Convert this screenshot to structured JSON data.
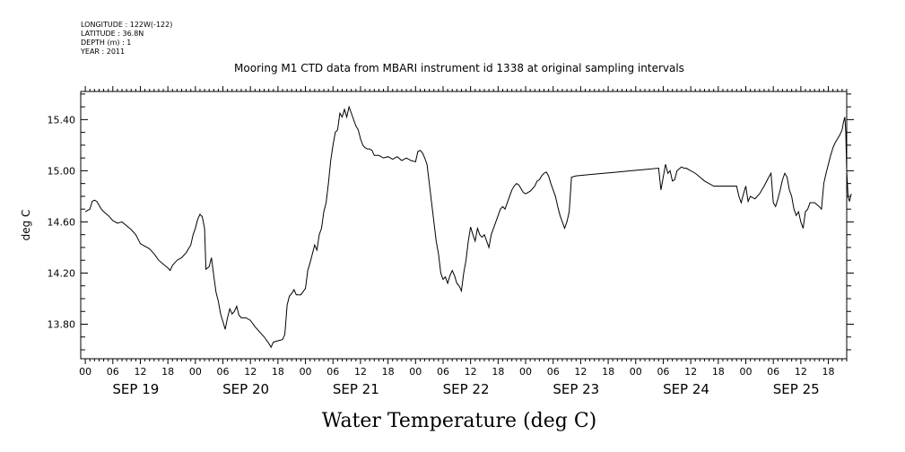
{
  "header": {
    "meta_lines": [
      "LONGITUDE : 122W(-122)",
      "LATITUDE : 36.8N",
      "DEPTH (m) : 1",
      "YEAR : 2011"
    ]
  },
  "chart_data": {
    "type": "line",
    "title": "Mooring M1 CTD data from MBARI instrument id 1338 at original sampling intervals",
    "xlabel": "Water Temperature (deg C)",
    "ylabel": "deg C",
    "x_unit": "hours since 00 SEP 19",
    "xlim": [
      -1,
      166
    ],
    "ylim": [
      13.53,
      15.62
    ],
    "y_ticks": [
      13.8,
      14.2,
      14.6,
      15.0,
      15.4
    ],
    "y_tick_labels": [
      "13.80",
      "14.20",
      "14.60",
      "15.00",
      "15.40"
    ],
    "x_hour_labels": [
      "00",
      "06",
      "12",
      "18",
      "00",
      "06",
      "12",
      "18",
      "00",
      "06",
      "12",
      "18",
      "00",
      "06",
      "12",
      "18",
      "00",
      "06",
      "12",
      "18",
      "00",
      "06",
      "12",
      "18",
      "00",
      "06",
      "12",
      "18"
    ],
    "day_labels": [
      "SEP 19",
      "SEP 20",
      "SEP 21",
      "SEP 22",
      "SEP 23",
      "SEP 24",
      "SEP 25"
    ],
    "grid": false,
    "series": [
      {
        "points": [
          [
            0,
            14.68
          ],
          [
            0.5,
            14.69
          ],
          [
            1,
            14.7
          ],
          [
            1.5,
            14.76
          ],
          [
            2,
            14.77
          ],
          [
            2.5,
            14.76
          ],
          [
            3,
            14.73
          ],
          [
            3.5,
            14.7
          ],
          [
            4,
            14.68
          ],
          [
            5,
            14.65
          ],
          [
            6,
            14.61
          ],
          [
            7,
            14.59
          ],
          [
            8,
            14.6
          ],
          [
            9,
            14.57
          ],
          [
            10,
            14.54
          ],
          [
            11,
            14.5
          ],
          [
            12,
            14.43
          ],
          [
            13,
            14.41
          ],
          [
            14,
            14.39
          ],
          [
            15,
            14.35
          ],
          [
            16,
            14.3
          ],
          [
            17,
            14.27
          ],
          [
            18,
            14.24
          ],
          [
            18.5,
            14.22
          ],
          [
            19,
            14.26
          ],
          [
            20,
            14.3
          ],
          [
            21,
            14.32
          ],
          [
            22,
            14.36
          ],
          [
            23,
            14.42
          ],
          [
            23.5,
            14.5
          ],
          [
            24,
            14.55
          ],
          [
            24.5,
            14.62
          ],
          [
            25,
            14.66
          ],
          [
            25.5,
            14.64
          ],
          [
            26,
            14.55
          ],
          [
            26.3,
            14.23
          ],
          [
            27,
            14.25
          ],
          [
            27.5,
            14.32
          ],
          [
            28,
            14.18
          ],
          [
            28.5,
            14.05
          ],
          [
            29,
            13.98
          ],
          [
            29.5,
            13.88
          ],
          [
            30,
            13.82
          ],
          [
            30.5,
            13.76
          ],
          [
            31,
            13.85
          ],
          [
            31.5,
            13.92
          ],
          [
            32,
            13.88
          ],
          [
            32.5,
            13.9
          ],
          [
            33,
            13.94
          ],
          [
            33.5,
            13.87
          ],
          [
            34,
            13.85
          ],
          [
            35,
            13.85
          ],
          [
            36,
            13.83
          ],
          [
            37,
            13.78
          ],
          [
            38,
            13.74
          ],
          [
            39,
            13.7
          ],
          [
            40,
            13.65
          ],
          [
            40.5,
            13.62
          ],
          [
            41,
            13.66
          ],
          [
            42,
            13.67
          ],
          [
            43,
            13.68
          ],
          [
            43.5,
            13.72
          ],
          [
            44,
            13.95
          ],
          [
            44.5,
            14.02
          ],
          [
            45,
            14.04
          ],
          [
            45.5,
            14.07
          ],
          [
            46,
            14.03
          ],
          [
            47,
            14.03
          ],
          [
            48,
            14.08
          ],
          [
            48.5,
            14.22
          ],
          [
            49,
            14.28
          ],
          [
            49.5,
            14.35
          ],
          [
            50,
            14.42
          ],
          [
            50.5,
            14.38
          ],
          [
            51,
            14.5
          ],
          [
            51.5,
            14.55
          ],
          [
            52,
            14.68
          ],
          [
            52.5,
            14.75
          ],
          [
            53,
            14.9
          ],
          [
            53.5,
            15.08
          ],
          [
            54,
            15.2
          ],
          [
            54.5,
            15.3
          ],
          [
            55,
            15.32
          ],
          [
            55.5,
            15.45
          ],
          [
            56,
            15.42
          ],
          [
            56.5,
            15.48
          ],
          [
            57,
            15.42
          ],
          [
            57.5,
            15.5
          ],
          [
            58,
            15.45
          ],
          [
            58.5,
            15.4
          ],
          [
            59,
            15.35
          ],
          [
            59.5,
            15.32
          ],
          [
            60,
            15.25
          ],
          [
            60.5,
            15.2
          ],
          [
            61,
            15.18
          ],
          [
            61.5,
            15.17
          ],
          [
            62,
            15.17
          ],
          [
            62.5,
            15.16
          ],
          [
            63,
            15.12
          ],
          [
            64,
            15.12
          ],
          [
            65,
            15.1
          ],
          [
            66,
            15.11
          ],
          [
            67,
            15.09
          ],
          [
            68,
            15.11
          ],
          [
            69,
            15.08
          ],
          [
            70,
            15.1
          ],
          [
            71,
            15.08
          ],
          [
            72,
            15.07
          ],
          [
            72.5,
            15.15
          ],
          [
            73,
            15.16
          ],
          [
            73.5,
            15.14
          ],
          [
            74,
            15.1
          ],
          [
            74.5,
            15.05
          ],
          [
            75,
            14.9
          ],
          [
            75.5,
            14.75
          ],
          [
            76,
            14.6
          ],
          [
            76.5,
            14.45
          ],
          [
            77,
            14.35
          ],
          [
            77.5,
            14.2
          ],
          [
            78,
            14.15
          ],
          [
            78.5,
            14.17
          ],
          [
            79,
            14.12
          ],
          [
            79.5,
            14.18
          ],
          [
            80,
            14.22
          ],
          [
            80.5,
            14.18
          ],
          [
            81,
            14.12
          ],
          [
            81.5,
            14.1
          ],
          [
            82,
            14.06
          ],
          [
            82.5,
            14.2
          ],
          [
            83,
            14.3
          ],
          [
            83.5,
            14.45
          ],
          [
            84,
            14.56
          ],
          [
            84.5,
            14.5
          ],
          [
            85,
            14.45
          ],
          [
            85.5,
            14.55
          ],
          [
            86,
            14.5
          ],
          [
            86.5,
            14.48
          ],
          [
            87,
            14.5
          ],
          [
            87.5,
            14.45
          ],
          [
            88,
            14.4
          ],
          [
            88.5,
            14.5
          ],
          [
            89,
            14.55
          ],
          [
            89.5,
            14.6
          ],
          [
            90,
            14.65
          ],
          [
            90.5,
            14.7
          ],
          [
            91,
            14.72
          ],
          [
            91.5,
            14.7
          ],
          [
            92,
            14.75
          ],
          [
            92.5,
            14.8
          ],
          [
            93,
            14.85
          ],
          [
            93.5,
            14.88
          ],
          [
            94,
            14.9
          ],
          [
            94.5,
            14.89
          ],
          [
            95,
            14.86
          ],
          [
            95.5,
            14.83
          ],
          [
            96,
            14.82
          ],
          [
            97,
            14.84
          ],
          [
            98,
            14.88
          ],
          [
            98.5,
            14.92
          ],
          [
            99,
            14.93
          ],
          [
            99.5,
            14.96
          ],
          [
            100,
            14.98
          ],
          [
            100.5,
            14.99
          ],
          [
            101,
            14.96
          ],
          [
            101.5,
            14.9
          ],
          [
            102,
            14.85
          ],
          [
            102.5,
            14.8
          ],
          [
            103,
            14.72
          ],
          [
            103.5,
            14.65
          ],
          [
            104,
            14.6
          ],
          [
            104.5,
            14.55
          ],
          [
            105,
            14.6
          ],
          [
            105.5,
            14.68
          ],
          [
            106,
            14.95
          ],
          [
            107,
            14.96
          ],
          [
            110,
            14.97
          ],
          [
            113,
            14.98
          ],
          [
            116,
            14.99
          ],
          [
            119,
            15.0
          ],
          [
            122,
            15.01
          ],
          [
            125,
            15.02
          ],
          [
            125.5,
            14.85
          ],
          [
            126,
            14.95
          ],
          [
            126.5,
            15.05
          ],
          [
            127,
            14.98
          ],
          [
            127.5,
            15.0
          ],
          [
            128,
            14.92
          ],
          [
            128.5,
            14.93
          ],
          [
            129,
            15.0
          ],
          [
            130,
            15.03
          ],
          [
            130.5,
            15.02
          ],
          [
            131,
            15.02
          ],
          [
            132,
            15.0
          ],
          [
            133,
            14.98
          ],
          [
            134,
            14.95
          ],
          [
            135,
            14.92
          ],
          [
            136,
            14.9
          ],
          [
            137,
            14.88
          ],
          [
            138,
            14.88
          ],
          [
            139,
            14.88
          ],
          [
            140,
            14.88
          ],
          [
            141,
            14.88
          ],
          [
            142,
            14.88
          ],
          [
            142.5,
            14.8
          ],
          [
            143,
            14.75
          ],
          [
            143.5,
            14.82
          ],
          [
            144,
            14.88
          ],
          [
            144.5,
            14.76
          ],
          [
            145,
            14.8
          ],
          [
            146,
            14.78
          ],
          [
            147,
            14.82
          ],
          [
            148,
            14.88
          ],
          [
            149,
            14.95
          ],
          [
            149.5,
            14.98
          ],
          [
            150,
            14.75
          ],
          [
            150.5,
            14.72
          ],
          [
            151,
            14.78
          ],
          [
            151.5,
            14.85
          ],
          [
            152,
            14.93
          ],
          [
            152.5,
            14.98
          ],
          [
            153,
            14.95
          ],
          [
            153.5,
            14.85
          ],
          [
            154,
            14.8
          ],
          [
            154.5,
            14.7
          ],
          [
            155,
            14.65
          ],
          [
            155.5,
            14.68
          ],
          [
            156,
            14.6
          ],
          [
            156.5,
            14.55
          ],
          [
            157,
            14.68
          ],
          [
            157.5,
            14.7
          ],
          [
            158,
            14.75
          ],
          [
            159,
            14.75
          ],
          [
            160,
            14.72
          ],
          [
            160.5,
            14.7
          ],
          [
            161,
            14.9
          ],
          [
            161.5,
            14.98
          ],
          [
            162,
            15.05
          ],
          [
            162.5,
            15.12
          ],
          [
            163,
            15.18
          ],
          [
            163.5,
            15.22
          ],
          [
            164,
            15.25
          ],
          [
            164.5,
            15.28
          ],
          [
            165,
            15.32
          ],
          [
            165.3,
            15.38
          ],
          [
            165.6,
            15.42
          ],
          [
            165.8,
            15.3
          ],
          [
            166,
            15.0
          ],
          [
            166.3,
            14.8
          ],
          [
            166.6,
            14.76
          ],
          [
            167,
            14.82
          ]
        ]
      }
    ]
  }
}
